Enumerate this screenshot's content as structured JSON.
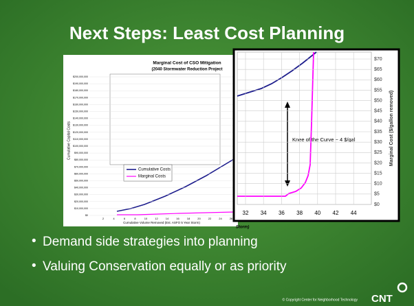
{
  "header": {
    "title": "Next Steps: Least Cost Planning"
  },
  "inset_chart": {
    "title": "Marginal Cost of CSO Mitigation",
    "subtitle": "(2040 Stormwater Reduction Project",
    "ylabel": "Cumulative Capital Costs",
    "xlabel": "Cumulative Volume Removed (Est. ASFO 5 Year Storm)",
    "yticks": [
      "$200,000,000",
      "$190,000,000",
      "$180,000,000",
      "$170,000,000",
      "$160,000,000",
      "$150,000,000",
      "$140,000,000",
      "$130,000,000",
      "$120,000,000",
      "$110,000,000",
      "$100,000,000",
      "$90,000,000",
      "$80,000,000",
      "$70,000,000",
      "$60,000,000",
      "$50,000,000",
      "$40,000,000",
      "$30,000,000",
      "$20,000,000",
      "$10,000,000",
      "$0"
    ],
    "xticks": [
      "2",
      "4",
      "6",
      "8",
      "10",
      "12",
      "14",
      "16",
      "18",
      "20",
      "22",
      "24",
      "26"
    ],
    "legend": [
      "Cumulative Costs",
      "Marginal Costs"
    ]
  },
  "zoom": {
    "ylabel": "Marginal Cost ($/gallon removed)",
    "yticks": [
      "$70",
      "$65",
      "$60",
      "$55",
      "$50",
      "$45",
      "$40",
      "$35",
      "$30",
      "$25",
      "$20",
      "$15",
      "$10",
      "$5",
      "$0"
    ],
    "xticks": [
      "32",
      "34",
      "36",
      "38",
      "40",
      "42",
      "44"
    ],
    "annotation": "Knee of the Curve ~ 4 $/gal",
    "xlabel_fragment": "Storm)"
  },
  "bullets": [
    "Demand side strategies into planning",
    "Valuing Conservation equally or as priority"
  ],
  "footer": {
    "copyright": "© Copyright Center for Neighborhood Technology",
    "logo": "CNT"
  }
}
